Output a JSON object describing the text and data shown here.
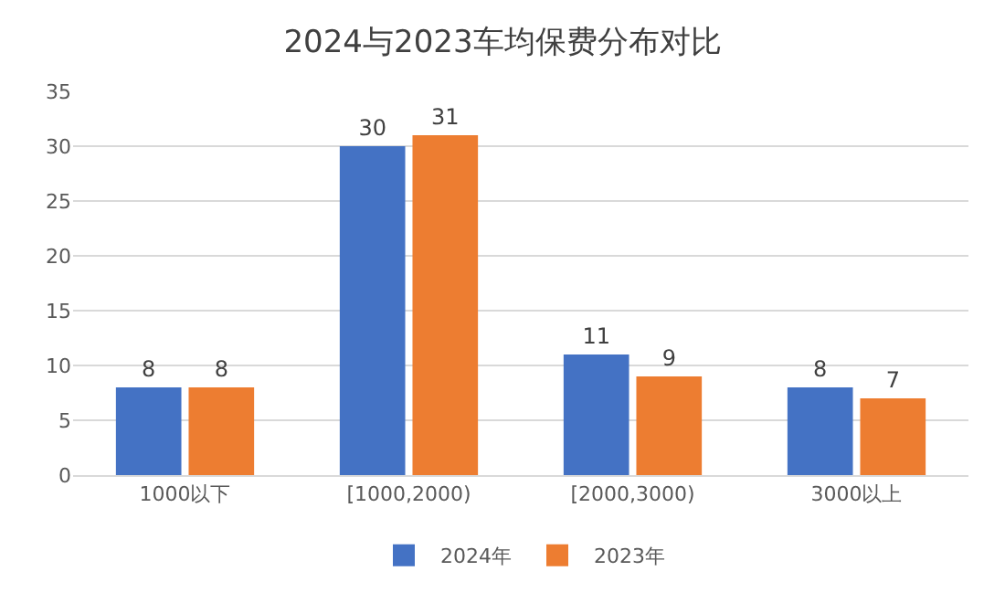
{
  "chart_data": {
    "type": "bar",
    "title": "2024与2023车均保费分布对比",
    "categories": [
      "1000以下",
      "[1000,2000)",
      "[2000,3000)",
      "3000以上"
    ],
    "series": [
      {
        "name": "2024年",
        "color": "#4472c4",
        "values": [
          8,
          30,
          11,
          8
        ]
      },
      {
        "name": "2023年",
        "color": "#ed7d31",
        "values": [
          8,
          31,
          9,
          7
        ]
      }
    ],
    "ylim": [
      0,
      35
    ],
    "yticks": [
      0,
      5,
      10,
      15,
      20,
      25,
      30,
      35
    ],
    "grid": "y",
    "legend": "bottom",
    "data_labels": true
  }
}
